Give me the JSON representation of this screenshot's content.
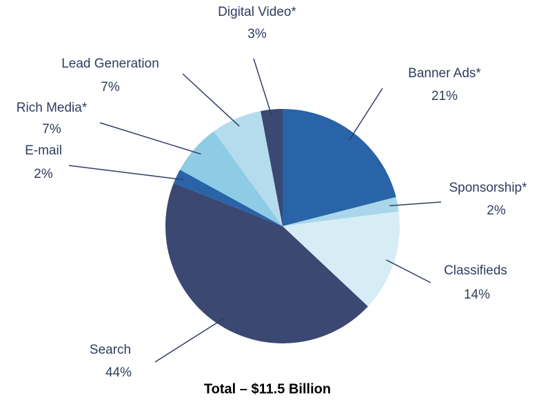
{
  "chart_data": {
    "type": "pie",
    "caption": "Total – $11.5 Billion",
    "categories": [
      "Banner Ads*",
      "Sponsorship*",
      "Classifieds",
      "Search",
      "E-mail",
      "Rich Media*",
      "Lead Generation",
      "Digital Video*"
    ],
    "values": [
      21,
      2,
      14,
      44,
      2,
      7,
      7,
      3
    ],
    "value_labels": [
      "21%",
      "2%",
      "14%",
      "44%",
      "2%",
      "7%",
      "7%",
      "3%"
    ],
    "colors": [
      "#2864a7",
      "#a9d6ea",
      "#d7edf6",
      "#3a4872",
      "#2864a7",
      "#8ecbe5",
      "#b5dcec",
      "#3a4872"
    ]
  }
}
